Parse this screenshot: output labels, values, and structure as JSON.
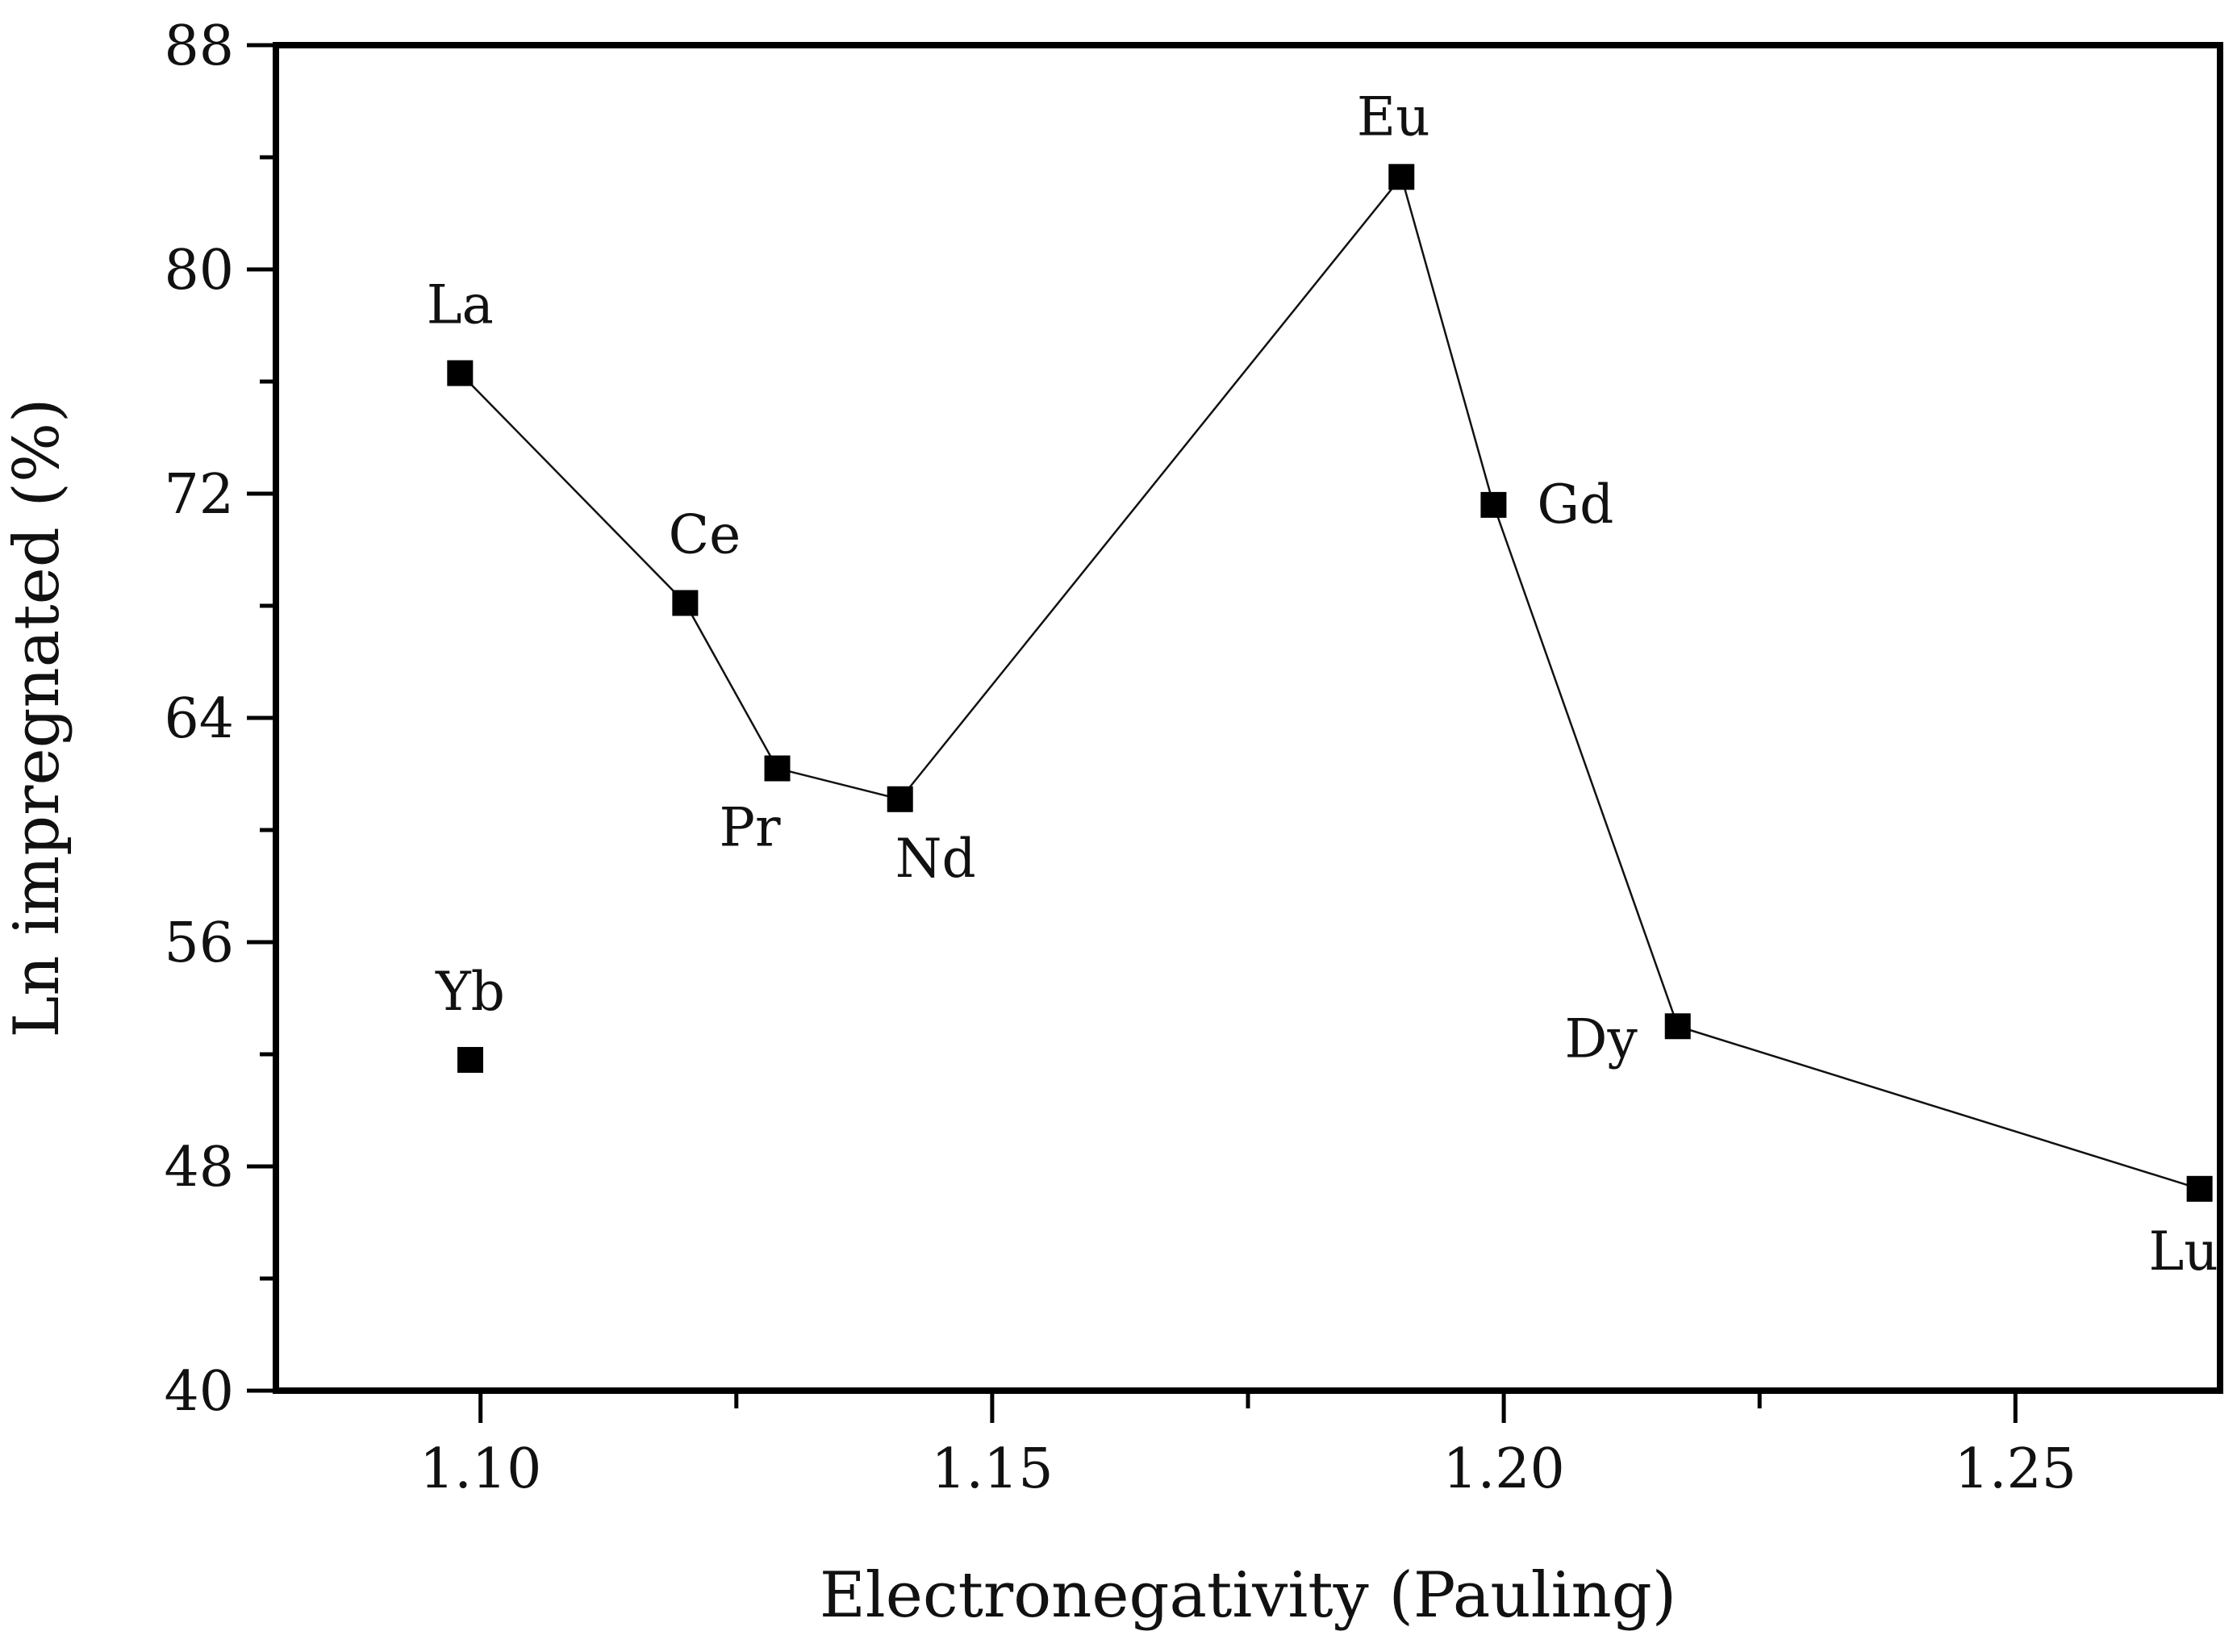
{
  "chart_data": {
    "type": "scatter",
    "title": "",
    "xlabel": "Electronegativity (Pauling)",
    "ylabel": "Ln impregnated (%)",
    "xlim": [
      1.08,
      1.27
    ],
    "ylim": [
      40,
      88
    ],
    "xticks": [
      1.1,
      1.15,
      1.2,
      1.25
    ],
    "xtick_labels": [
      "1.10",
      "1.15",
      "1.20",
      "1.25"
    ],
    "xminor": [
      1.125,
      1.175,
      1.225
    ],
    "yticks": [
      40,
      48,
      56,
      64,
      72,
      80,
      88
    ],
    "ytick_labels": [
      "40",
      "48",
      "56",
      "64",
      "72",
      "80",
      "88"
    ],
    "yminor": [
      44,
      52,
      60,
      68,
      76,
      84
    ],
    "grid": false,
    "marker": "square",
    "connected_series": {
      "name": "connected",
      "points": [
        {
          "label": "La",
          "x": 1.098,
          "y": 76.3
        },
        {
          "label": "Ce",
          "x": 1.12,
          "y": 68.1
        },
        {
          "label": "Pr",
          "x": 1.129,
          "y": 62.2
        },
        {
          "label": "Nd",
          "x": 1.141,
          "y": 61.1
        },
        {
          "label": "Eu",
          "x": 1.19,
          "y": 83.3
        },
        {
          "label": "Gd",
          "x": 1.199,
          "y": 71.6
        },
        {
          "label": "Dy",
          "x": 1.217,
          "y": 53.0
        },
        {
          "label": "Lu",
          "x": 1.268,
          "y": 47.2
        }
      ]
    },
    "isolated_points": [
      {
        "label": "Yb",
        "x": 1.099,
        "y": 51.8
      }
    ]
  }
}
